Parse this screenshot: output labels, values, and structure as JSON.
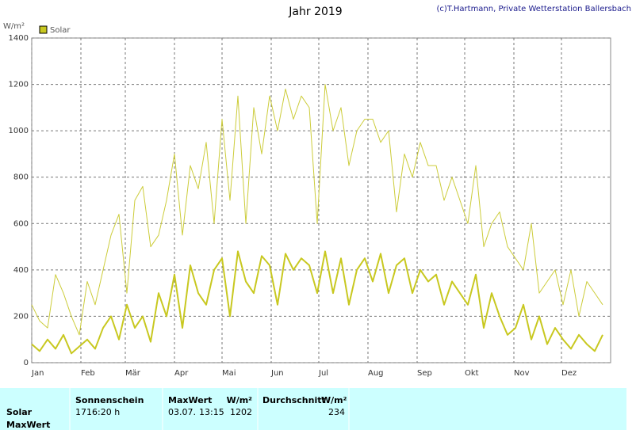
{
  "chart_data": {
    "type": "line",
    "title": "Jahr 2019",
    "credit": "(c)T.Hartmann, Private Wetterstation Ballersbach",
    "y_label": "W/m²",
    "x": [
      1,
      6,
      11,
      16,
      21,
      26,
      31,
      36,
      41,
      46,
      51,
      56,
      61,
      66,
      71,
      76,
      81,
      86,
      91,
      96,
      101,
      106,
      111,
      116,
      121,
      126,
      131,
      136,
      141,
      146,
      151,
      156,
      161,
      166,
      171,
      176,
      181,
      186,
      191,
      196,
      201,
      206,
      211,
      216,
      221,
      226,
      231,
      236,
      241,
      246,
      251,
      256,
      261,
      266,
      271,
      276,
      281,
      286,
      291,
      296,
      301,
      306,
      311,
      316,
      321,
      326,
      331,
      336,
      341,
      346,
      351,
      356,
      361
    ],
    "series": [
      {
        "color": "#cccc3a",
        "width": 1,
        "values": [
          250,
          180,
          150,
          380,
          300,
          200,
          120,
          350,
          250,
          400,
          550,
          640,
          300,
          700,
          760,
          500,
          550,
          700,
          900,
          550,
          850,
          750,
          950,
          600,
          1050,
          700,
          1150,
          600,
          1100,
          900,
          1150,
          1000,
          1180,
          1050,
          1150,
          1100,
          600,
          1200,
          1000,
          1100,
          850,
          1000,
          1050,
          1050,
          950,
          1000,
          650,
          900,
          800,
          950,
          850,
          850,
          700,
          800,
          700,
          600,
          850,
          500,
          600,
          650,
          500,
          450,
          400,
          600,
          300,
          350,
          400,
          250,
          400,
          200,
          350,
          300,
          250
        ]
      },
      {
        "name": "Solar",
        "color": "#c8c820",
        "width": 2,
        "values": [
          80,
          50,
          100,
          60,
          120,
          40,
          70,
          100,
          60,
          150,
          200,
          100,
          250,
          150,
          200,
          90,
          300,
          200,
          380,
          150,
          420,
          300,
          250,
          400,
          450,
          200,
          480,
          350,
          300,
          460,
          420,
          250,
          470,
          400,
          450,
          420,
          300,
          480,
          300,
          450,
          250,
          400,
          450,
          350,
          470,
          300,
          420,
          450,
          300,
          400,
          350,
          380,
          250,
          350,
          300,
          250,
          380,
          150,
          300,
          200,
          120,
          150,
          250,
          100,
          200,
          80,
          150,
          100,
          60,
          120,
          80,
          50,
          120
        ]
      }
    ],
    "xlim": [
      1,
      366
    ],
    "xticks": [
      {
        "value": 1,
        "label": "Jan"
      },
      {
        "value": 32,
        "label": "Feb"
      },
      {
        "value": 60,
        "label": "Mär"
      },
      {
        "value": 91,
        "label": "Apr"
      },
      {
        "value": 121,
        "label": "Mai"
      },
      {
        "value": 152,
        "label": "Jun"
      },
      {
        "value": 182,
        "label": "Jul"
      },
      {
        "value": 213,
        "label": "Aug"
      },
      {
        "value": 244,
        "label": "Sep"
      },
      {
        "value": 274,
        "label": "Okt"
      },
      {
        "value": 305,
        "label": "Nov"
      },
      {
        "value": 335,
        "label": "Dez"
      }
    ],
    "ylim": [
      0,
      1400
    ],
    "yticks": [
      0,
      200,
      400,
      600,
      800,
      1000,
      1200,
      1400
    ],
    "grid": true
  },
  "table": {
    "row_labels": [
      "Solar",
      "MaxWert"
    ],
    "sunshine_header": "Sonnenschein",
    "sunshine": "1716:20 h",
    "max_header": "MaxWert",
    "max_unit": "W/m²",
    "max_date": "03.07.",
    "max_time": "13:15",
    "max_value": "1202",
    "avg_header": "Durchschnitt",
    "avg_unit": "W/m²",
    "avg_value": "234"
  }
}
